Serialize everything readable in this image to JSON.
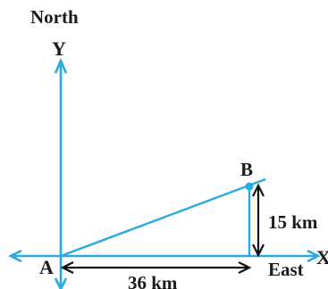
{
  "labels": {
    "north": "North",
    "y_axis": "Y",
    "x_axis": "X",
    "east": "East",
    "point_a": "A",
    "point_b": "B",
    "vertical_distance": "15 km",
    "horizontal_distance": "36 km"
  },
  "colors": {
    "axis": "#29a9e0",
    "dimension": "#111111",
    "text": "#1a1a1a"
  }
}
